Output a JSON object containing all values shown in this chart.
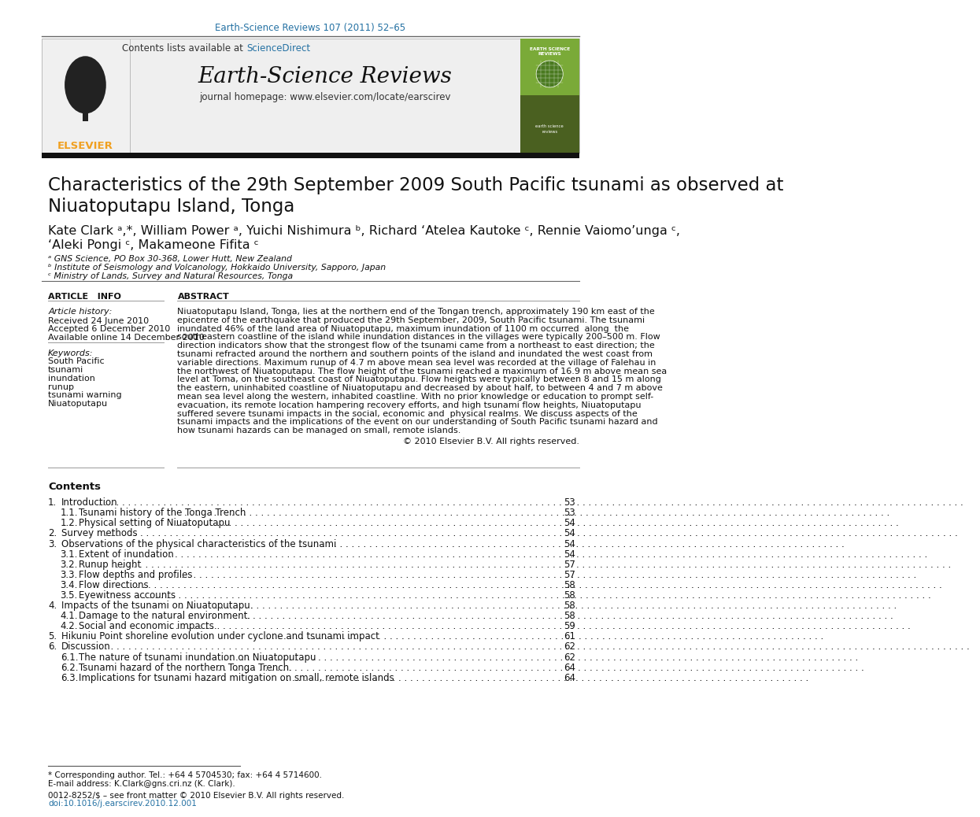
{
  "journal_ref": "Earth-Science Reviews 107 (2011) 52–65",
  "journal_name": "Earth-Science Reviews",
  "contents_list_text": "Contents lists available at ScienceDirect",
  "journal_homepage": "journal homepage: www.elsevier.com/locate/earscirev",
  "title_line1": "Characteristics of the 29th September 2009 South Pacific tsunami as observed at",
  "title_line2": "Niuatoputapu Island, Tonga",
  "authors_line1": "Kate Clark ᵃ,*, William Power ᵃ, Yuichi Nishimura ᵇ, Richard ‘Atelea Kautoke ᶜ, Rennie Vaiomo’unga ᶜ,",
  "authors_line2": "‘Aleki Pongi ᶜ, Makameone Fifita ᶜ",
  "affil_a": "ᵃ GNS Science, PO Box 30-368, Lower Hutt, New Zealand",
  "affil_b": "ᵇ Institute of Seismology and Volcanology, Hokkaido University, Sapporo, Japan",
  "affil_c": "ᶜ Ministry of Lands, Survey and Natural Resources, Tonga",
  "article_info_label": "ARTICLE   INFO",
  "abstract_label": "ABSTRACT",
  "article_history_label": "Article history:",
  "received": "Received 24 June 2010",
  "accepted": "Accepted 6 December 2010",
  "available": "Available online 14 December 2010",
  "keywords_label": "Keywords:",
  "keywords": [
    "South Pacific",
    "tsunami",
    "inundation",
    "runup",
    "tsunami warning",
    "Niuatoputapu"
  ],
  "copyright": "© 2010 Elsevier B.V. All rights reserved.",
  "contents_title": "Contents",
  "toc": [
    {
      "num": "1.",
      "title": "Introduction",
      "page": "53",
      "indent": 0
    },
    {
      "num": "1.1.",
      "title": "Tsunami history of the Tonga Trench",
      "page": "53",
      "indent": 1
    },
    {
      "num": "1.2.",
      "title": "Physical setting of Niuatoputapu",
      "page": "54",
      "indent": 1
    },
    {
      "num": "2.",
      "title": "Survey methods",
      "page": "54",
      "indent": 0
    },
    {
      "num": "3.",
      "title": "Observations of the physical characteristics of the tsunami",
      "page": "54",
      "indent": 0
    },
    {
      "num": "3.1.",
      "title": "Extent of inundation",
      "page": "54",
      "indent": 1
    },
    {
      "num": "3.2.",
      "title": "Runup height",
      "page": "57",
      "indent": 1
    },
    {
      "num": "3.3.",
      "title": "Flow depths and profiles",
      "page": "57",
      "indent": 1
    },
    {
      "num": "3.4.",
      "title": "Flow directions",
      "page": "58",
      "indent": 1
    },
    {
      "num": "3.5.",
      "title": "Eyewitness accounts",
      "page": "58",
      "indent": 1
    },
    {
      "num": "4.",
      "title": "Impacts of the tsunami on Niuatoputapu.",
      "page": "58",
      "indent": 0
    },
    {
      "num": "4.1.",
      "title": "Damage to the natural environment.",
      "page": "58",
      "indent": 1
    },
    {
      "num": "4.2.",
      "title": "Social and economic impacts.",
      "page": "59",
      "indent": 1
    },
    {
      "num": "5.",
      "title": "Hikuniu Point shoreline evolution under cyclone and tsunami impact",
      "page": "61",
      "indent": 0
    },
    {
      "num": "6.",
      "title": "Discussion",
      "page": "62",
      "indent": 0
    },
    {
      "num": "6.1.",
      "title": "The nature of tsunami inundation on Niuatoputapu",
      "page": "62",
      "indent": 1
    },
    {
      "num": "6.2.",
      "title": "Tsunami hazard of the northern Tonga Trench.",
      "page": "64",
      "indent": 1
    },
    {
      "num": "6.3.",
      "title": "Implications for tsunami hazard mitigation on small, remote islands",
      "page": "64",
      "indent": 1
    }
  ],
  "abstract_lines": [
    "Niuatoputapu Island, Tonga, lies at the northern end of the Tongan trench, approximately 190 km east of the",
    "epicentre of the earthquake that produced the 29th September, 2009, South Pacific tsunami. The tsunami",
    "inundated 46% of the land area of Niuatoputapu, maximum inundation of 1100 m occurred  along  the",
    "southeastern coastline of the island while inundation distances in the villages were typically 200–500 m. Flow",
    "direction indicators show that the strongest flow of the tsunami came from a northeast to east direction; the",
    "tsunami refracted around the northern and southern points of the island and inundated the west coast from",
    "variable directions. Maximum runup of 4.7 m above mean sea level was recorded at the village of Falehau in",
    "the northwest of Niuatoputapu. The flow height of the tsunami reached a maximum of 16.9 m above mean sea",
    "level at Toma, on the southeast coast of Niuatoputapu. Flow heights were typically between 8 and 15 m along",
    "the eastern, uninhabited coastline of Niuatoputapu and decreased by about half, to between 4 and 7 m above",
    "mean sea level along the western, inhabited coastline. With no prior knowledge or education to prompt self-",
    "evacuation, its remote location hampering recovery efforts, and high tsunami flow heights, Niuatoputapu",
    "suffered severe tsunami impacts in the social, economic and  physical realms. We discuss aspects of the",
    "tsunami impacts and the implications of the event on our understanding of South Pacific tsunami hazard and",
    "how tsunami hazards can be managed on small, remote islands."
  ],
  "footer_corresponding": "* Corresponding author. Tel.: +64 4 5704530; fax: +64 4 5714600.",
  "footer_email": "E-mail address: K.Clark@gns.cri.nz (K. Clark).",
  "footer_issn": "0012-8252/$ – see front matter © 2010 Elsevier B.V. All rights reserved.",
  "footer_doi": "doi:10.1016/j.earscirev.2010.12.001",
  "bg_color": "#ffffff",
  "link_color": "#2471a3",
  "elsevier_orange": "#f0a020"
}
